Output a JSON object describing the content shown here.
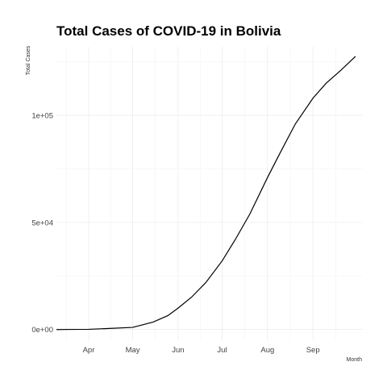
{
  "chart_data": {
    "type": "line",
    "title": "Total Cases of COVID-19 in Bolivia",
    "xlabel": "Month",
    "ylabel": "Total Cases",
    "x_ticks": [
      "Apr",
      "May",
      "Jun",
      "Jul",
      "Aug",
      "Sep"
    ],
    "y_ticks": [
      {
        "value": 0,
        "label": "0e+00"
      },
      {
        "value": 50000,
        "label": "5e+04"
      },
      {
        "value": 100000,
        "label": "1e+05"
      }
    ],
    "xlim": [
      "2020-03-10",
      "2020-10-05"
    ],
    "ylim": [
      -5000,
      132000
    ],
    "grid": true,
    "x": [
      "2020-03-10",
      "2020-03-20",
      "2020-04-01",
      "2020-04-15",
      "2020-05-01",
      "2020-05-15",
      "2020-05-25",
      "2020-06-01",
      "2020-06-10",
      "2020-06-20",
      "2020-07-01",
      "2020-07-10",
      "2020-07-20",
      "2020-08-01",
      "2020-08-10",
      "2020-08-20",
      "2020-09-01",
      "2020-09-10",
      "2020-09-20",
      "2020-09-30"
    ],
    "series": [
      {
        "values": [
          0,
          50,
          100,
          500,
          1000,
          3500,
          6500,
          10000,
          15000,
          22000,
          32000,
          42000,
          54000,
          71000,
          83000,
          96000,
          108000,
          115000,
          121000,
          127500
        ]
      }
    ]
  }
}
